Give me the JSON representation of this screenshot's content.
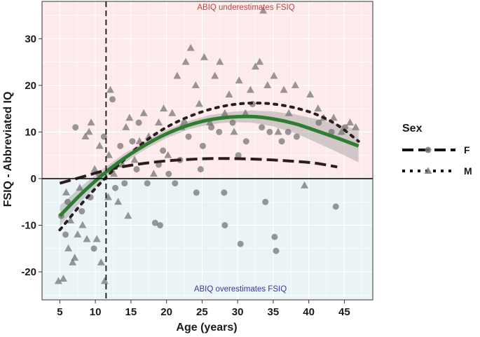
{
  "chart_data": {
    "type": "scatter",
    "xlabel": "Age (years)",
    "ylabel": "FSIQ - Abbreviated IQ",
    "xlim": [
      2.5,
      49
    ],
    "ylim": [
      -26,
      38
    ],
    "xticks": [
      5,
      10,
      15,
      20,
      25,
      30,
      35,
      40,
      45
    ],
    "yticks": [
      -20,
      -10,
      0,
      10,
      20,
      30
    ],
    "grid": true,
    "vline_x": 11.5,
    "hline_y": 0,
    "regions": {
      "upper": {
        "label": "ABIQ underestimates FSIQ",
        "color": "#fdeaea",
        "label_color": "#b04848"
      },
      "lower": {
        "label": "ABIQ overestimates FSIQ",
        "color": "#eaf4f6",
        "label_color": "#3a3a9a"
      }
    },
    "legend": {
      "title": "Sex",
      "position": "right",
      "entries": [
        {
          "label": "F",
          "marker": "circle",
          "line": "dashed"
        },
        {
          "label": "M",
          "marker": "triangle",
          "line": "dotted"
        }
      ]
    },
    "fit_overall": {
      "name": "Overall",
      "color": "#2e7d32",
      "x": [
        5,
        8,
        11,
        14,
        17,
        20,
        23,
        26,
        29,
        32,
        35,
        38,
        41,
        44,
        47
      ],
      "y": [
        -8,
        -3.3,
        0.8,
        4.3,
        7.2,
        9.6,
        11.4,
        12.6,
        13.2,
        13.3,
        12.8,
        11.8,
        10.3,
        8.7,
        7
      ],
      "band_halfwidth": [
        2.2,
        1.6,
        1.2,
        1.0,
        0.9,
        0.9,
        0.9,
        1.0,
        1.1,
        1.3,
        1.6,
        2.0,
        2.5,
        3.0,
        3.5
      ]
    },
    "fit_F": {
      "name": "F",
      "x": [
        5,
        8,
        11,
        14,
        17,
        20,
        23,
        26,
        29,
        32,
        35,
        38,
        41,
        44
      ],
      "y": [
        -1,
        0.3,
        1.6,
        2.6,
        3.3,
        3.8,
        4.1,
        4.3,
        4.3,
        4.2,
        4.0,
        3.7,
        3.3,
        2.5
      ]
    },
    "fit_M": {
      "name": "M",
      "x": [
        5,
        8,
        11,
        14,
        17,
        20,
        23,
        26,
        29,
        32,
        35,
        38,
        41,
        44,
        47
      ],
      "y": [
        -11,
        -5.5,
        -0.5,
        4,
        8,
        11,
        13.2,
        14.8,
        15.8,
        16.2,
        16,
        15.2,
        13.8,
        11.5,
        8
      ]
    },
    "series": [
      {
        "name": "F",
        "marker": "circle",
        "points": [
          [
            5.2,
            -8
          ],
          [
            6.1,
            -5
          ],
          [
            5.8,
            -12
          ],
          [
            7.2,
            11
          ],
          [
            8.1,
            -7
          ],
          [
            9.3,
            -4
          ],
          [
            9.8,
            -15
          ],
          [
            10.5,
            1
          ],
          [
            11.2,
            9
          ],
          [
            12.4,
            17
          ],
          [
            13.5,
            7
          ],
          [
            14.1,
            -1
          ],
          [
            15.2,
            8
          ],
          [
            16.1,
            12
          ],
          [
            17.3,
            -1
          ],
          [
            18.4,
            -9.5
          ],
          [
            19.1,
            -10
          ],
          [
            19.5,
            6
          ],
          [
            20.3,
            1
          ],
          [
            21.2,
            -1
          ],
          [
            22.5,
            12
          ],
          [
            23.1,
            9
          ],
          [
            24.2,
            -3
          ],
          [
            25.1,
            7
          ],
          [
            26.3,
            11
          ],
          [
            27.4,
            10
          ],
          [
            28.1,
            -3
          ],
          [
            28.2,
            -10
          ],
          [
            29.3,
            12
          ],
          [
            30.1,
            5
          ],
          [
            30.4,
            -14
          ],
          [
            31.2,
            8
          ],
          [
            32.1,
            16
          ],
          [
            33.4,
            11
          ],
          [
            33.9,
            -5
          ],
          [
            34.5,
            10
          ],
          [
            35.2,
            -12.5
          ],
          [
            35.4,
            -15.5
          ],
          [
            36.2,
            8
          ],
          [
            37.1,
            10
          ],
          [
            38.3,
            9
          ],
          [
            41.4,
            12
          ],
          [
            43.2,
            10
          ],
          [
            43.8,
            -6
          ],
          [
            45.1,
            11
          ],
          [
            12.8,
            -2
          ],
          [
            15.8,
            2
          ],
          [
            18.9,
            3
          ],
          [
            21.9,
            4
          ],
          [
            24.8,
            2
          ]
        ]
      },
      {
        "name": "M",
        "marker": "triangle",
        "points": [
          [
            4.8,
            -22
          ],
          [
            5.5,
            -21.5
          ],
          [
            6.2,
            -15
          ],
          [
            6.8,
            -18
          ],
          [
            7.5,
            -12
          ],
          [
            8.2,
            -10
          ],
          [
            8.6,
            9
          ],
          [
            9.1,
            10
          ],
          [
            9.4,
            12
          ],
          [
            10.2,
            -13
          ],
          [
            10.8,
            -18
          ],
          [
            11.3,
            -22
          ],
          [
            11.8,
            -4
          ],
          [
            12.1,
            19
          ],
          [
            12.6,
            1
          ],
          [
            13.2,
            -5
          ],
          [
            14.3,
            11
          ],
          [
            14.8,
            13
          ],
          [
            15.5,
            4
          ],
          [
            16.2,
            8
          ],
          [
            16.8,
            14
          ],
          [
            17.5,
            9
          ],
          [
            18.2,
            1
          ],
          [
            18.9,
            12
          ],
          [
            19.6,
            15
          ],
          [
            20.2,
            5
          ],
          [
            20.8,
            14
          ],
          [
            21.5,
            22
          ],
          [
            22.1,
            11
          ],
          [
            22.7,
            25
          ],
          [
            23.4,
            28
          ],
          [
            24.1,
            20
          ],
          [
            24.6,
            16
          ],
          [
            25.3,
            26
          ],
          [
            26.1,
            12
          ],
          [
            26.8,
            22
          ],
          [
            27.5,
            25
          ],
          [
            28.2,
            14
          ],
          [
            28.8,
            18
          ],
          [
            29.5,
            10
          ],
          [
            30.2,
            21
          ],
          [
            31.1,
            14
          ],
          [
            31.8,
            19
          ],
          [
            32.5,
            24
          ],
          [
            33.1,
            25
          ],
          [
            33.6,
            36
          ],
          [
            34.2,
            20
          ],
          [
            35.1,
            22
          ],
          [
            35.7,
            10
          ],
          [
            36.5,
            19
          ],
          [
            37.2,
            14
          ],
          [
            38.1,
            20
          ],
          [
            39.4,
            -1.5
          ],
          [
            40.2,
            18
          ],
          [
            41.3,
            15
          ],
          [
            42.1,
            13
          ],
          [
            43.5,
            13
          ],
          [
            44.6,
            10
          ],
          [
            45.8,
            12
          ],
          [
            46.6,
            11
          ],
          [
            5.9,
            -3
          ],
          [
            6.5,
            -9
          ],
          [
            7.1,
            -17
          ],
          [
            7.8,
            -2
          ],
          [
            8.8,
            -13
          ],
          [
            9.9,
            2
          ],
          [
            10.6,
            7
          ],
          [
            11.9,
            5
          ],
          [
            13.8,
            3
          ],
          [
            14.6,
            -8
          ]
        ]
      }
    ]
  }
}
